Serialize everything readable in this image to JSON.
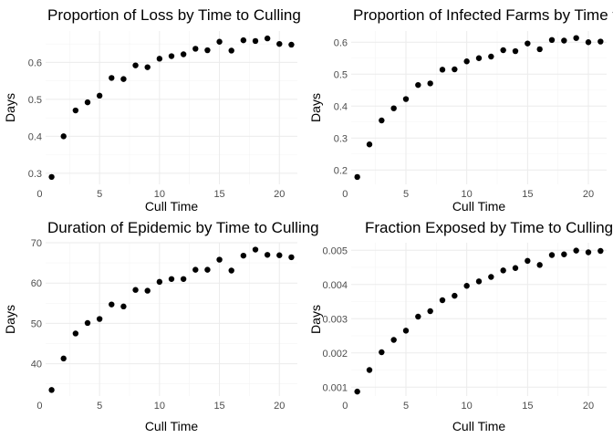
{
  "chart_data": [
    {
      "type": "scatter",
      "title": "Proportion of Loss by Time to Culling",
      "xlabel": "Cull Time",
      "ylabel": "Days",
      "xlim": [
        0.5,
        21.5
      ],
      "ylim": [
        0.27,
        0.685
      ],
      "xticks": [
        0,
        5,
        10,
        15,
        20
      ],
      "yticks": [
        0.3,
        0.4,
        0.5,
        0.6
      ],
      "ytick_labels": [
        "0.3",
        "0.4",
        "0.5",
        "0.6"
      ],
      "grid": true,
      "x": [
        1,
        2,
        3,
        4,
        5,
        6,
        7,
        8,
        9,
        10,
        11,
        12,
        13,
        14,
        15,
        16,
        17,
        18,
        19,
        20,
        21
      ],
      "y": [
        0.29,
        0.4,
        0.47,
        0.492,
        0.51,
        0.558,
        0.555,
        0.592,
        0.587,
        0.61,
        0.617,
        0.622,
        0.637,
        0.633,
        0.656,
        0.632,
        0.66,
        0.658,
        0.665,
        0.65,
        0.648
      ]
    },
    {
      "type": "scatter",
      "title": "Proportion of Infected Farms by Time to Culling",
      "xlabel": "Cull Time",
      "ylabel": "Days",
      "xlim": [
        0.5,
        21.5
      ],
      "ylim": [
        0.155,
        0.635
      ],
      "xticks": [
        0,
        5,
        10,
        15,
        20
      ],
      "yticks": [
        0.2,
        0.3,
        0.4,
        0.5,
        0.6
      ],
      "ytick_labels": [
        "0.2",
        "0.3",
        "0.4",
        "0.5",
        "0.6"
      ],
      "grid": true,
      "x": [
        1,
        2,
        3,
        4,
        5,
        6,
        7,
        8,
        9,
        10,
        11,
        12,
        13,
        14,
        15,
        16,
        17,
        18,
        19,
        20,
        21
      ],
      "y": [
        0.178,
        0.28,
        0.355,
        0.393,
        0.422,
        0.466,
        0.471,
        0.514,
        0.515,
        0.54,
        0.55,
        0.555,
        0.575,
        0.572,
        0.596,
        0.578,
        0.607,
        0.605,
        0.613,
        0.6,
        0.602
      ]
    },
    {
      "type": "scatter",
      "title": "Duration of Epidemic by Time to Culling",
      "xlabel": "Cull Time",
      "ylabel": "Days",
      "xlim": [
        0.5,
        21.5
      ],
      "ylim": [
        32,
        70
      ],
      "xticks": [
        0,
        5,
        10,
        15,
        20
      ],
      "yticks": [
        40,
        50,
        60,
        70
      ],
      "ytick_labels": [
        "40",
        "50",
        "60",
        "70"
      ],
      "grid": true,
      "x": [
        1,
        2,
        3,
        4,
        5,
        6,
        7,
        8,
        9,
        10,
        11,
        12,
        13,
        14,
        15,
        16,
        17,
        18,
        19,
        20,
        21
      ],
      "y": [
        33.5,
        41.3,
        47.5,
        50.1,
        51.1,
        54.7,
        54.2,
        58.3,
        58.1,
        60.3,
        61.0,
        61.0,
        63.3,
        63.3,
        65.8,
        63.1,
        66.8,
        68.3,
        67.0,
        66.9,
        66.4
      ]
    },
    {
      "type": "scatter",
      "title": "Fraction Exposed by Time to Culling",
      "xlabel": "Cull Time",
      "ylabel": "Days",
      "xlim": [
        0.5,
        21.5
      ],
      "ylim": [
        0.00074,
        0.00522
      ],
      "xticks": [
        0,
        5,
        10,
        15,
        20
      ],
      "yticks": [
        0.001,
        0.002,
        0.003,
        0.004,
        0.005
      ],
      "ytick_labels": [
        "0.001",
        "0.002",
        "0.003",
        "0.004",
        "0.005"
      ],
      "grid": true,
      "x": [
        1,
        2,
        3,
        4,
        5,
        6,
        7,
        8,
        9,
        10,
        11,
        12,
        13,
        14,
        15,
        16,
        17,
        18,
        19,
        20,
        21
      ],
      "y": [
        0.00087,
        0.0015,
        0.00202,
        0.00238,
        0.00265,
        0.00306,
        0.00322,
        0.00354,
        0.00367,
        0.00396,
        0.00409,
        0.00422,
        0.00441,
        0.00448,
        0.00469,
        0.00457,
        0.00486,
        0.00488,
        0.00499,
        0.00494,
        0.00498
      ]
    }
  ]
}
